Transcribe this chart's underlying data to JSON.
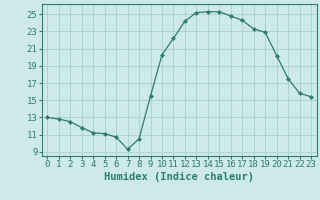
{
  "x": [
    0,
    1,
    2,
    3,
    4,
    5,
    6,
    7,
    8,
    9,
    10,
    11,
    12,
    13,
    14,
    15,
    16,
    17,
    18,
    19,
    20,
    21,
    22,
    23
  ],
  "y": [
    13,
    12.8,
    12.5,
    11.8,
    11.2,
    11.1,
    10.7,
    9.3,
    10.5,
    15.5,
    20.3,
    22.2,
    24.2,
    25.2,
    25.3,
    25.3,
    24.8,
    24.3,
    23.3,
    22.9,
    20.2,
    17.5,
    15.8,
    15.4
  ],
  "line_color": "#2e7d6e",
  "marker": "D",
  "marker_size": 2.0,
  "bg_color": "#cde9e8",
  "grid_color": "#aed4d2",
  "xlabel": "Humidex (Indice chaleur)",
  "xlim": [
    -0.5,
    23.5
  ],
  "ylim": [
    8.5,
    26.2
  ],
  "yticks": [
    9,
    11,
    13,
    15,
    17,
    19,
    21,
    23,
    25
  ],
  "xticks": [
    0,
    1,
    2,
    3,
    4,
    5,
    6,
    7,
    8,
    9,
    10,
    11,
    12,
    13,
    14,
    15,
    16,
    17,
    18,
    19,
    20,
    21,
    22,
    23
  ],
  "tick_color": "#2e7d6e",
  "label_color": "#2e7d6e",
  "font_size_xlabel": 7.5,
  "font_size_ticks": 6.5
}
